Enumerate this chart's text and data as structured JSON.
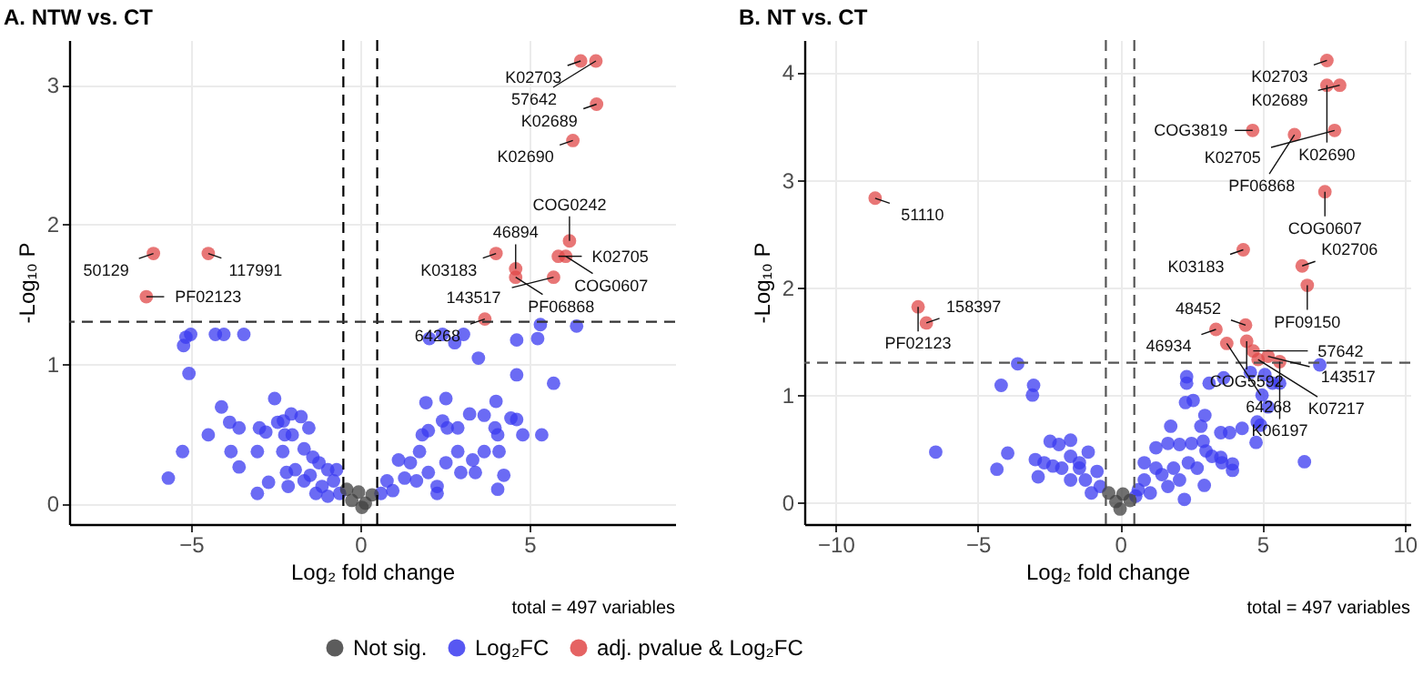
{
  "chart_data": [
    {
      "type": "scatter",
      "title": "A. NTW vs. CT",
      "xlabel": "Log₂ fold change",
      "ylabel": "-Log₁₀ P",
      "xlim": [
        -8.6,
        9.3
      ],
      "ylim": [
        -0.15,
        3.32
      ],
      "xticks": [
        -5,
        0,
        5
      ],
      "yticks": [
        0,
        1,
        2,
        3
      ],
      "grid": true,
      "legend": "bottom",
      "marker": "circle",
      "ref_lines": [
        {
          "axis": "x",
          "value": -0.5,
          "color": "#000000",
          "line_style": "dashed"
        },
        {
          "axis": "x",
          "value": 0.5,
          "color": "#000000",
          "line_style": "dashed"
        },
        {
          "axis": "y",
          "value": 1.3,
          "color": "#333333",
          "line_style": "dashed"
        }
      ],
      "series": [
        {
          "name": "Not sig.",
          "color": "#404040",
          "x": [
            -0.4,
            -0.25,
            -0.05,
            0.15,
            0.35,
            0.05
          ],
          "values": [
            0.1,
            0.02,
            0.08,
            0,
            0.06,
            -0.03
          ]
        },
        {
          "name": "Log₂FC",
          "color": "#3a3af0",
          "x": [
            -5.15,
            -5.01,
            -5.22,
            -5.06,
            -4.28,
            -4.03,
            -3.44,
            -4.1,
            -4.49,
            -3.86,
            -3.58,
            -5.25,
            -5.67,
            -3.82,
            -3.58,
            -3.04,
            -3.04,
            -2.71,
            -2.98,
            -2.79,
            -2.53,
            -2.44,
            -2.27,
            -2.04,
            -1.75,
            -2.23,
            -2.01,
            -1.52,
            -2.29,
            -1.66,
            -1.4,
            -2.18,
            -1.92,
            -2.13,
            -1.66,
            -1.22,
            -0.96,
            -0.7,
            -1.13,
            -0.79,
            -1.31,
            -0.61,
            -1.48,
            -0.96,
            2.04,
            2.43,
            2.79,
            3.05,
            3.49,
            4.62,
            5.32,
            5.24,
            6.39,
            4.62,
            5.71,
            1.94,
            2.53,
            3.23,
            3.66,
            4.01,
            2.43,
            2.57,
            2.88,
            1.83,
            2.01,
            3.98,
            4.06,
            4.45,
            4.62,
            4.8,
            5.36,
            2.88,
            3.32,
            3.66,
            4.1,
            4.24,
            4.06,
            3.4,
            2.97,
            2.27,
            2.27,
            1.75,
            1.48,
            1.13,
            1.31,
            0.79,
            0.96,
            1.66,
            2.01,
            0.61,
            2.53
          ],
          "values": [
            1.19,
            1.21,
            1.13,
            0.93,
            1.21,
            1.21,
            1.21,
            0.69,
            0.49,
            0.58,
            0.54,
            0.37,
            0.18,
            0.37,
            0.26,
            0.37,
            0.07,
            0.15,
            0.54,
            0.51,
            0.75,
            0.58,
            0.59,
            0.64,
            0.62,
            0.49,
            0.49,
            0.54,
            0.37,
            0.39,
            0.33,
            0.22,
            0.24,
            0.12,
            0.16,
            0.29,
            0.24,
            0.24,
            0.12,
            0.16,
            0.07,
            0.07,
            0.2,
            0.05,
            1.18,
            1.21,
            1.15,
            1.21,
            1.04,
            1.17,
            1.28,
            1.18,
            1.27,
            0.92,
            0.86,
            0.72,
            0.75,
            0.64,
            0.63,
            0.73,
            0.59,
            0.54,
            0.54,
            0.49,
            0.52,
            0.54,
            0.49,
            0.61,
            0.6,
            0.49,
            0.49,
            0.37,
            0.31,
            0.37,
            0.37,
            0.2,
            0.1,
            0.22,
            0.22,
            0.12,
            0.07,
            0.37,
            0.29,
            0.31,
            0.18,
            0.16,
            0.09,
            0.16,
            0.22,
            0.07,
            0.29
          ]
        },
        {
          "name": "adj. pvalue & Log₂FC",
          "color": "#e04848",
          "x": [
            6.51,
            6.96,
            6.98,
            6.28,
            6.18,
            4.01,
            5.85,
            6.07,
            4.59,
            4.59,
            5.71,
            -6.11,
            -4.49,
            -6.32,
            3.68
          ],
          "values": [
            3.17,
            3.17,
            2.86,
            2.6,
            1.88,
            1.79,
            1.77,
            1.77,
            1.68,
            1.62,
            1.62,
            1.79,
            1.79,
            1.48,
            1.32
          ]
        }
      ],
      "annotations": [
        {
          "text": "K02703",
          "x": 6.51,
          "y": 3.17
        },
        {
          "text": "57642",
          "x": 6.96,
          "y": 3.17
        },
        {
          "text": "K02689",
          "x": 6.98,
          "y": 2.86
        },
        {
          "text": "K02690",
          "x": 6.28,
          "y": 2.6
        },
        {
          "text": "COG0242",
          "x": 6.18,
          "y": 1.88
        },
        {
          "text": "K03183",
          "x": 4.01,
          "y": 1.79
        },
        {
          "text": "K02705",
          "x": 5.85,
          "y": 1.77
        },
        {
          "text": "COG0607",
          "x": 6.07,
          "y": 1.77
        },
        {
          "text": "46894",
          "x": 4.59,
          "y": 1.68
        },
        {
          "text": "PF06868",
          "x": 4.59,
          "y": 1.62
        },
        {
          "text": "143517",
          "x": 5.71,
          "y": 1.62
        },
        {
          "text": "50129",
          "x": -6.11,
          "y": 1.79
        },
        {
          "text": "117991",
          "x": -4.49,
          "y": 1.79
        },
        {
          "text": "PF02123",
          "x": -6.32,
          "y": 1.48
        },
        {
          "text": "64268",
          "x": 3.68,
          "y": 1.32
        },
        "total = 497 variables"
      ]
    },
    {
      "type": "scatter",
      "title": "B. NT vs. CT",
      "xlabel": "Log₂ fold change",
      "ylabel": "-Log₁₀ P",
      "xlim": [
        -11.1,
        10.2
      ],
      "ylim": [
        -0.2,
        4.3
      ],
      "xticks": [
        -10,
        -5,
        0,
        5,
        10
      ],
      "yticks": [
        0,
        1,
        2,
        3,
        4
      ],
      "grid": true,
      "legend": "bottom",
      "marker": "circle",
      "ref_lines": [
        {
          "axis": "x",
          "value": -0.5,
          "color": "#555555",
          "line_style": "dashed"
        },
        {
          "axis": "x",
          "value": 0.5,
          "color": "#555555",
          "line_style": "dashed"
        },
        {
          "axis": "y",
          "value": 1.3,
          "color": "#555555",
          "line_style": "dashed"
        }
      ],
      "series": [
        {
          "name": "Not sig.",
          "color": "#404040",
          "x": [
            -0.4,
            -0.15,
            0.1,
            0.35,
            0
          ],
          "values": [
            0.09,
            0.01,
            0.08,
            0.02,
            -0.06
          ]
        },
        {
          "name": "Log₂FC",
          "color": "#3a3af0",
          "x": [
            -3.6,
            -4.18,
            -3.04,
            -3.08,
            -6.48,
            -3.95,
            -4.33,
            -2.88,
            -2.98,
            -2.67,
            -2.46,
            -2.15,
            -1.74,
            -2.05,
            -1.74,
            -1.43,
            -1.12,
            -1.74,
            -1.22,
            -0.81,
            -1.01,
            -0.7,
            -1.43,
            -2.36,
            2.34,
            2.34,
            3.13,
            3.64,
            4.58,
            5.09,
            5.36,
            5.61,
            7.02,
            4.99,
            5.2,
            2.3,
            2.57,
            2.98,
            1.78,
            2.84,
            3.54,
            3.85,
            4.29,
            4.82,
            4.94,
            4.78,
            6.48,
            3.54,
            3.58,
            3.95,
            3.95,
            2.96,
            2.26,
            2.51,
            2.92,
            2.09,
            1.26,
            1.68,
            0.85,
            1.26,
            1.88,
            2.4,
            2.71,
            0.85,
            1.47,
            2.09,
            0.64,
            1.06,
            1.68,
            0.55,
            3.02,
            3.23
          ],
          "values": [
            1.29,
            1.09,
            1.09,
            1.0,
            0.47,
            0.46,
            0.31,
            0.24,
            0.4,
            0.37,
            0.57,
            0.54,
            0.58,
            0.32,
            0.43,
            0.32,
            0.47,
            0.21,
            0.21,
            0.29,
            0.09,
            0.15,
            0.37,
            0.34,
            1.17,
            1.11,
            1.11,
            1.16,
            1.21,
            1.19,
            1.11,
            1.11,
            1.28,
            1.0,
            0.89,
            0.93,
            0.95,
            0.81,
            0.71,
            0.71,
            0.65,
            0.65,
            0.69,
            0.75,
            0.72,
            0.56,
            0.38,
            0.42,
            0.37,
            0.36,
            0.3,
            0.16,
            0.03,
            0.55,
            0.57,
            0.54,
            0.51,
            0.55,
            0.37,
            0.32,
            0.32,
            0.37,
            0.32,
            0.21,
            0.26,
            0.21,
            0.12,
            0.09,
            0.15,
            0.06,
            0.48,
            0.43
          ]
        },
        {
          "name": "adj. pvalue & Log₂FC",
          "color": "#e04848",
          "x": [
            7.27,
            7.72,
            7.27,
            4.66,
            6.13,
            7.54,
            7.2,
            -8.61,
            4.33,
            6.4,
            6.58,
            -7.1,
            -6.81,
            3.37,
            4.41,
            4.45,
            4.68,
            3.75,
            5.2,
            4.85,
            5.61
          ],
          "values": [
            4.11,
            3.88,
            3.88,
            3.46,
            3.42,
            3.46,
            2.89,
            2.83,
            2.35,
            2.2,
            2.02,
            1.82,
            1.67,
            1.61,
            1.65,
            1.5,
            1.41,
            1.48,
            1.36,
            1.33,
            1.31
          ]
        }
      ],
      "annotations": [
        {
          "text": "K02703",
          "x": 7.27,
          "y": 4.11
        },
        {
          "text": "K02689",
          "x": 7.72,
          "y": 3.88
        },
        {
          "text": "K02690",
          "x": 7.27,
          "y": 3.88
        },
        {
          "text": "COG3819",
          "x": 4.66,
          "y": 3.46
        },
        {
          "text": "PF06868",
          "x": 6.13,
          "y": 3.42
        },
        {
          "text": "K02705",
          "x": 7.54,
          "y": 3.46
        },
        {
          "text": "COG0607",
          "x": 7.2,
          "y": 2.89
        },
        {
          "text": "51110",
          "x": -8.61,
          "y": 2.83
        },
        {
          "text": "K03183",
          "x": 4.33,
          "y": 2.35
        },
        {
          "text": "K02706",
          "x": 6.4,
          "y": 2.2
        },
        {
          "text": "PF09150",
          "x": 6.58,
          "y": 2.02
        },
        {
          "text": "PF02123",
          "x": -7.1,
          "y": 1.82
        },
        {
          "text": "158397",
          "x": -6.81,
          "y": 1.67
        },
        {
          "text": "46934",
          "x": 3.37,
          "y": 1.61
        },
        {
          "text": "48452",
          "x": 4.41,
          "y": 1.65
        },
        {
          "text": "COG5592",
          "x": 4.45,
          "y": 1.5
        },
        {
          "text": "57642",
          "x": 4.68,
          "y": 1.41
        },
        {
          "text": "64268",
          "x": 3.75,
          "y": 1.48
        },
        {
          "text": "143517",
          "x": 5.2,
          "y": 1.36
        },
        {
          "text": "K07217",
          "x": 4.85,
          "y": 1.33
        },
        {
          "text": "K06197",
          "x": 5.61,
          "y": 1.31
        },
        "total = 497 variables"
      ]
    }
  ]
}
